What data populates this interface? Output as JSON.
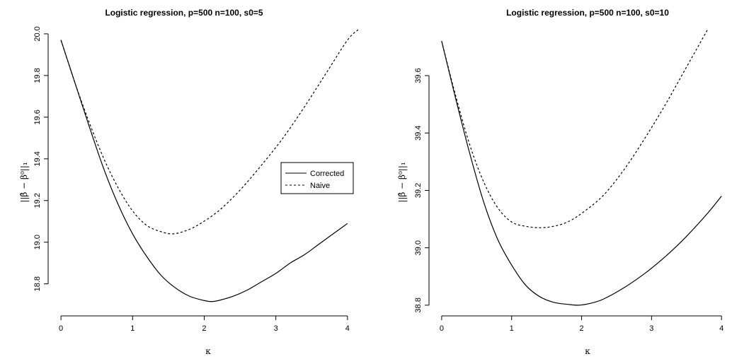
{
  "chart_data": [
    {
      "type": "line",
      "title": "Logistic regression, p=500 n=100, s0=5",
      "xlabel": "κ",
      "ylabel": "||β̂ − β⁰||₁",
      "xlim": [
        -0.1,
        4.15
      ],
      "ylim": [
        18.67,
        20.02
      ],
      "xticks": [
        0,
        1,
        2,
        3,
        4
      ],
      "yticks": [
        18.8,
        19.0,
        19.2,
        19.4,
        19.6,
        19.8,
        20.0
      ],
      "grid": false,
      "legend_position": "right",
      "series": [
        {
          "name": "Corrected",
          "line_style": "solid",
          "x": [
            0,
            0.2,
            0.4,
            0.6,
            0.8,
            1.0,
            1.2,
            1.4,
            1.6,
            1.8,
            2.0,
            2.1,
            2.2,
            2.4,
            2.6,
            2.8,
            3.0,
            3.2,
            3.4,
            3.6,
            3.8,
            4.0
          ],
          "y": [
            19.97,
            19.76,
            19.55,
            19.35,
            19.18,
            19.04,
            18.93,
            18.84,
            18.78,
            18.74,
            18.72,
            18.715,
            18.72,
            18.74,
            18.77,
            18.81,
            18.85,
            18.9,
            18.94,
            18.99,
            19.04,
            19.09
          ]
        },
        {
          "name": "Naive",
          "line_style": "dashed",
          "x": [
            0,
            0.2,
            0.4,
            0.6,
            0.8,
            1.0,
            1.2,
            1.4,
            1.55,
            1.7,
            1.9,
            2.2,
            2.5,
            2.8,
            3.1,
            3.4,
            3.7,
            4.0,
            4.15
          ],
          "y": [
            19.97,
            19.76,
            19.57,
            19.4,
            19.26,
            19.15,
            19.08,
            19.05,
            19.04,
            19.05,
            19.08,
            19.15,
            19.25,
            19.37,
            19.5,
            19.65,
            19.81,
            19.97,
            20.02
          ]
        }
      ]
    },
    {
      "type": "line",
      "title": "Logistic regression, p=500 n=100, s0=10",
      "xlabel": "κ",
      "ylabel": "||β̂ − β⁰||₁",
      "xlim": [
        -0.1,
        4.15
      ],
      "ylim": [
        38.78,
        39.76
      ],
      "xticks": [
        0,
        1,
        2,
        3,
        4
      ],
      "yticks": [
        38.8,
        39.0,
        39.2,
        39.4,
        39.6
      ],
      "grid": false,
      "legend_position": "none",
      "series": [
        {
          "name": "Corrected",
          "line_style": "solid",
          "x": [
            0,
            0.2,
            0.4,
            0.6,
            0.8,
            1.0,
            1.2,
            1.4,
            1.6,
            1.8,
            1.95,
            2.1,
            2.3,
            2.6,
            2.9,
            3.2,
            3.5,
            3.8,
            4.0
          ],
          "y": [
            39.72,
            39.52,
            39.33,
            39.16,
            39.03,
            38.94,
            38.87,
            38.83,
            38.81,
            38.803,
            38.8,
            38.805,
            38.82,
            38.86,
            38.91,
            38.97,
            39.04,
            39.12,
            39.18
          ]
        },
        {
          "name": "Naive",
          "line_style": "dashed",
          "x": [
            0,
            0.2,
            0.4,
            0.6,
            0.8,
            1.0,
            1.2,
            1.4,
            1.6,
            1.8,
            2.0,
            2.3,
            2.6,
            2.9,
            3.2,
            3.5,
            3.8
          ],
          "y": [
            39.72,
            39.53,
            39.36,
            39.23,
            39.14,
            39.09,
            39.075,
            39.07,
            39.075,
            39.09,
            39.12,
            39.18,
            39.27,
            39.38,
            39.5,
            39.63,
            39.76
          ]
        }
      ]
    }
  ]
}
